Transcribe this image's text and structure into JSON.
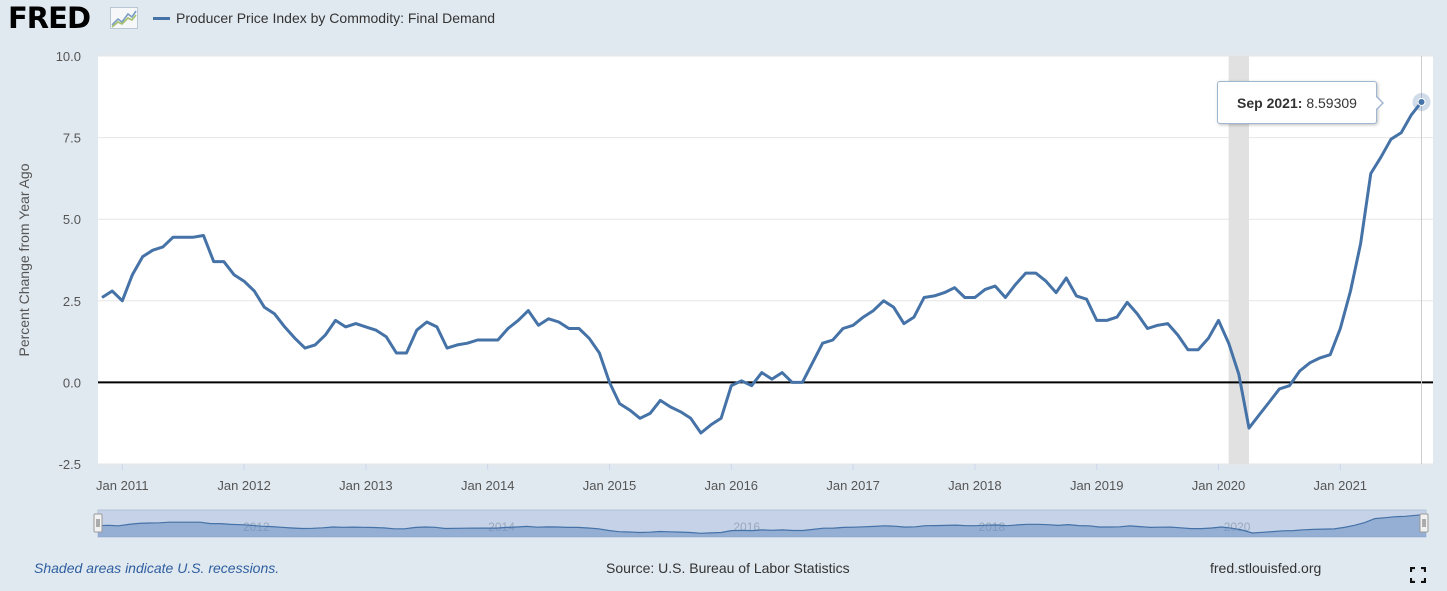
{
  "header": {
    "logo_text": "FRED",
    "legend_label": "Producer Price Index by Commodity: Final Demand",
    "series_color": "#4572a7"
  },
  "chart_data": {
    "type": "line",
    "ylabel": "Percent Change from Year Ago",
    "ylim": [
      -2.5,
      10.0
    ],
    "yticks": [
      "10.0",
      "7.5",
      "5.0",
      "2.5",
      "0.0",
      "-2.5"
    ],
    "xticks": [
      "Jan 2011",
      "Jan 2012",
      "Jan 2013",
      "Jan 2014",
      "Jan 2015",
      "Jan 2016",
      "Jan 2017",
      "Jan 2018",
      "Jan 2019",
      "Jan 2020",
      "Jan 2021"
    ],
    "x_start": "2010-11",
    "frequency": "monthly",
    "recession": {
      "start": "2020-02",
      "end": "2020-04"
    },
    "recession_color": "#e1e1e1",
    "zero_line": true,
    "series": [
      {
        "color": "#4572a7",
        "values": [
          2.6,
          2.8,
          2.5,
          3.3,
          3.85,
          4.05,
          4.15,
          4.45,
          4.45,
          4.45,
          4.5,
          3.7,
          3.7,
          3.3,
          3.1,
          2.8,
          2.3,
          2.1,
          1.7,
          1.35,
          1.05,
          1.15,
          1.45,
          1.9,
          1.7,
          1.8,
          1.7,
          1.6,
          1.4,
          0.9,
          0.9,
          1.6,
          1.85,
          1.7,
          1.05,
          1.15,
          1.2,
          1.3,
          1.3,
          1.3,
          1.65,
          1.9,
          2.2,
          1.75,
          1.95,
          1.85,
          1.65,
          1.65,
          1.35,
          0.9,
          0.0,
          -0.65,
          -0.85,
          -1.1,
          -0.95,
          -0.55,
          -0.75,
          -0.9,
          -1.1,
          -1.55,
          -1.3,
          -1.1,
          -0.1,
          0.05,
          -0.1,
          0.3,
          0.1,
          0.3,
          0.0,
          0.0,
          0.6,
          1.2,
          1.3,
          1.65,
          1.75,
          2.0,
          2.2,
          2.5,
          2.3,
          1.8,
          2.0,
          2.6,
          2.65,
          2.75,
          2.9,
          2.6,
          2.6,
          2.85,
          2.95,
          2.6,
          3.0,
          3.35,
          3.35,
          3.1,
          2.75,
          3.2,
          2.65,
          2.55,
          1.9,
          1.9,
          2.0,
          2.45,
          2.1,
          1.65,
          1.75,
          1.8,
          1.45,
          1.0,
          1.0,
          1.35,
          1.9,
          1.2,
          0.25,
          -1.4,
          -1.0,
          -0.6,
          -0.2,
          -0.1,
          0.35,
          0.6,
          0.75,
          0.85,
          1.65,
          2.8,
          4.25,
          6.4,
          6.9,
          7.45,
          7.65,
          8.2,
          8.59
        ]
      }
    ],
    "tooltip": {
      "date": "Sep 2021",
      "value": "8.59309"
    },
    "navigator_labels": [
      "2012",
      "2014",
      "2016",
      "2018",
      "2020"
    ]
  },
  "footer": {
    "note": "Shaded areas indicate U.S. recessions.",
    "source": "Source: U.S. Bureau of Labor Statistics",
    "site": "fred.stlouisfed.org"
  }
}
